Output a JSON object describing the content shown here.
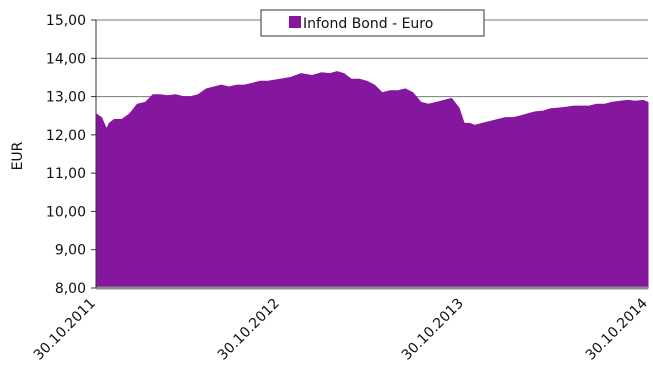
{
  "chart_data": {
    "type": "area",
    "ylabel": "EUR",
    "xlabel": "",
    "ylim": [
      8,
      15
    ],
    "yticks": [
      "8,00",
      "9,00",
      "10,00",
      "11,00",
      "12,00",
      "13,00",
      "14,00",
      "15,00"
    ],
    "xticks": [
      "30.10.2011",
      "30.10.2012",
      "30.10.2013",
      "30.10.2014"
    ],
    "grid": "horizontal",
    "legend_position": "top-center",
    "series": [
      {
        "name": "Infond Bond - Euro",
        "color": "#85179e",
        "x": [
          "2011-10-30",
          "2011-11-10",
          "2011-11-20",
          "2011-11-25",
          "2011-12-05",
          "2011-12-20",
          "2012-01-05",
          "2012-01-20",
          "2012-02-05",
          "2012-02-20",
          "2012-03-05",
          "2012-03-20",
          "2012-04-05",
          "2012-04-20",
          "2012-05-05",
          "2012-05-20",
          "2012-06-05",
          "2012-06-20",
          "2012-07-05",
          "2012-07-20",
          "2012-08-05",
          "2012-08-20",
          "2012-09-05",
          "2012-09-20",
          "2012-10-05",
          "2012-10-30",
          "2012-11-20",
          "2012-12-10",
          "2013-01-01",
          "2013-01-20",
          "2013-02-05",
          "2013-02-20",
          "2013-03-05",
          "2013-03-20",
          "2013-04-05",
          "2013-04-20",
          "2013-05-05",
          "2013-05-20",
          "2013-06-05",
          "2013-06-20",
          "2013-07-05",
          "2013-07-20",
          "2013-08-05",
          "2013-08-20",
          "2013-09-05",
          "2013-09-20",
          "2013-10-05",
          "2013-10-20",
          "2013-10-30",
          "2013-11-10",
          "2013-11-20",
          "2013-12-05",
          "2013-12-20",
          "2014-01-05",
          "2014-01-20",
          "2014-02-05",
          "2014-02-20",
          "2014-03-05",
          "2014-03-20",
          "2014-04-05",
          "2014-04-20",
          "2014-05-05",
          "2014-05-20",
          "2014-06-05",
          "2014-06-20",
          "2014-07-05",
          "2014-07-20",
          "2014-08-05",
          "2014-08-20",
          "2014-09-05",
          "2014-09-20",
          "2014-10-05",
          "2014-10-20",
          "2014-10-30"
        ],
        "values": [
          12.55,
          12.45,
          12.15,
          12.3,
          12.4,
          12.4,
          12.55,
          12.8,
          12.85,
          13.05,
          13.05,
          13.02,
          13.05,
          13.0,
          13.0,
          13.05,
          13.2,
          13.25,
          13.3,
          13.25,
          13.3,
          13.3,
          13.35,
          13.4,
          13.4,
          13.45,
          13.5,
          13.6,
          13.55,
          13.62,
          13.6,
          13.65,
          13.6,
          13.45,
          13.45,
          13.4,
          13.3,
          13.1,
          13.15,
          13.15,
          13.2,
          13.1,
          12.85,
          12.8,
          12.85,
          12.9,
          12.95,
          12.7,
          12.3,
          12.3,
          12.25,
          12.3,
          12.35,
          12.4,
          12.45,
          12.45,
          12.5,
          12.55,
          12.6,
          12.62,
          12.68,
          12.7,
          12.72,
          12.75,
          12.75,
          12.75,
          12.8,
          12.8,
          12.85,
          12.88,
          12.9,
          12.88,
          12.9,
          12.85
        ]
      }
    ]
  }
}
